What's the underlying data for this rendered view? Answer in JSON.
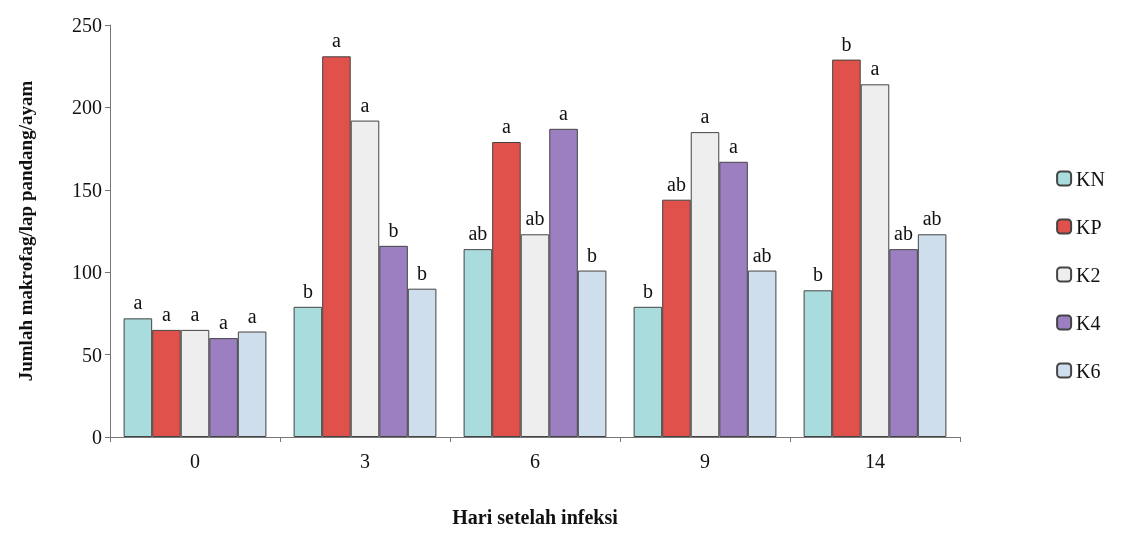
{
  "chart_data": {
    "type": "bar",
    "xlabel": "Hari setelah infeksi",
    "ylabel": "Jumlah makrofag/lap pandang/ayam",
    "categories": [
      "0",
      "3",
      "6",
      "9",
      "14"
    ],
    "series": [
      {
        "name": "KN",
        "color": "#a9dcdc",
        "values": [
          72,
          79,
          114,
          79,
          89
        ],
        "value_labels": [
          "a",
          "b",
          "ab",
          "b",
          "b"
        ]
      },
      {
        "name": "KP",
        "color": "#e0514b",
        "values": [
          65,
          231,
          179,
          144,
          229
        ],
        "value_labels": [
          "a",
          "a",
          "a",
          "ab",
          "b"
        ]
      },
      {
        "name": "K2",
        "color": "#eeeeee",
        "values": [
          65,
          192,
          123,
          185,
          214
        ],
        "value_labels": [
          "a",
          "a",
          "ab",
          "a",
          "a"
        ]
      },
      {
        "name": "K4",
        "color": "#9b7fc1",
        "values": [
          60,
          116,
          187,
          167,
          114
        ],
        "value_labels": [
          "a",
          "b",
          "a",
          "a",
          "ab"
        ]
      },
      {
        "name": "K6",
        "color": "#cfdeec",
        "values": [
          64,
          90,
          101,
          101,
          123
        ],
        "value_labels": [
          "a",
          "b",
          "b",
          "ab",
          "ab"
        ]
      }
    ],
    "ylim": [
      0,
      250
    ],
    "yticks": [
      0,
      50,
      100,
      150,
      200,
      250
    ],
    "grid": false,
    "legend": "right"
  }
}
